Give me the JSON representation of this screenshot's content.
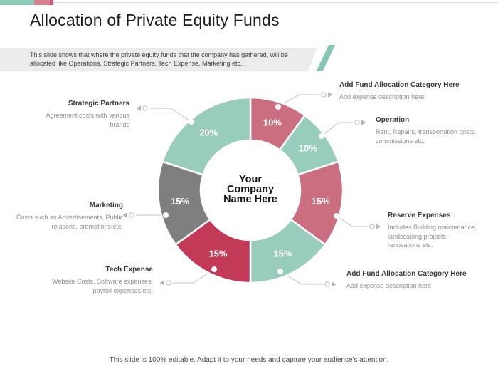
{
  "slide": {
    "title": "Allocation of Private Equity Funds",
    "subtitle": "This slide shows that where the private equity funds that the company has gathered, will be allocated like Operations, Strategic Partners, Tech Expense, Marketing etc. .",
    "footer": "This slide is 100% editable. Adapt it to your needs and capture your audience's attention."
  },
  "chart_data": {
    "type": "pie",
    "variant": "donut",
    "title": "Allocation of Private Equity Funds",
    "unit": "%",
    "total": 100,
    "labels_position": "outside",
    "center_label": "Your Company Name Here",
    "center_lines": [
      "Your",
      "Company",
      "Name Here"
    ],
    "segments": [
      {
        "name": "Add Fund Allocation Category Here",
        "description": "Add expense description here",
        "value": 10,
        "color": "#cb6e80"
      },
      {
        "name": "Operation",
        "description": "Rent, Repairs, transportation costs, commissions etc.",
        "value": 10,
        "color": "#98cdbe"
      },
      {
        "name": "Reserve Expenses",
        "description": "Includes Building maintenance, landscaping projects, renovations etc.",
        "value": 15,
        "color": "#cb6e80"
      },
      {
        "name": "Add Fund Allocation Category Here",
        "description": "Add expense description here",
        "value": 15,
        "color": "#98cdbe"
      },
      {
        "name": "Tech Expense",
        "description": "Website Costs, Software expenses, payroll expenses etc.",
        "value": 15,
        "color": "#c23a57"
      },
      {
        "name": "Marketing",
        "description": "Costs such as Advertisements, Public relations, promotions etc.",
        "value": 15,
        "color": "#7f7f7f"
      },
      {
        "name": "Strategic Partners",
        "description": "Agreement costs with various brands",
        "value": 20,
        "color": "#98cdbe"
      }
    ]
  },
  "colors": {
    "accent_teal": "#8ecbb9",
    "accent_pink": "#d8818f",
    "accent_pink_dark": "#c6596f",
    "slash_teal": "#85c7b4",
    "subtitle_bar": "#ececec",
    "segment_teal": "#98cdbe",
    "segment_rose": "#cb6e80",
    "segment_crimson": "#c23a57",
    "segment_gray": "#7f7f7f"
  }
}
